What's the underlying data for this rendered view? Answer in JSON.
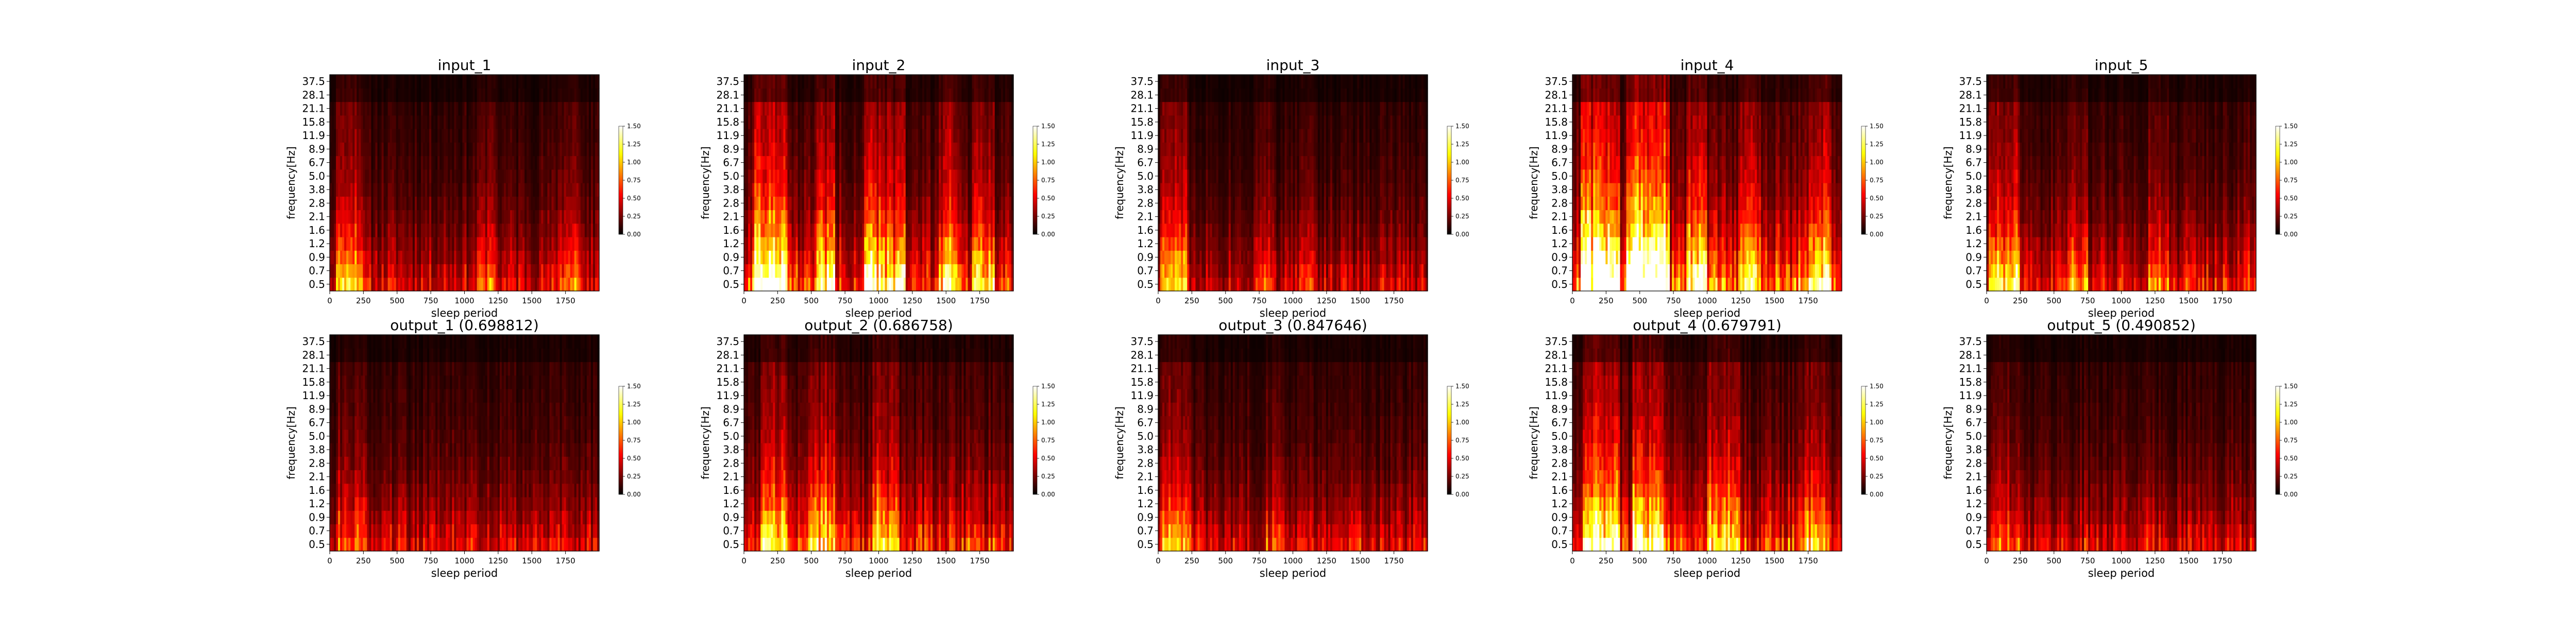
{
  "figure": {
    "background": "#ffffff",
    "colormap": "hot"
  },
  "chart_data": [
    {
      "type": "heatmap",
      "title": "input_1",
      "xlabel": "sleep period",
      "ylabel": "frequency[Hz]",
      "x_ticks": [
        "0",
        "250",
        "500",
        "750",
        "1000",
        "1250",
        "1500",
        "1750"
      ],
      "y_ticks": [
        "0.5",
        "0.7",
        "0.9",
        "1.2",
        "1.6",
        "2.1",
        "2.8",
        "3.8",
        "5.0",
        "6.7",
        "8.9",
        "11.9",
        "15.8",
        "21.1",
        "28.1",
        "37.5"
      ],
      "xlim": [
        0,
        2000
      ],
      "clim": [
        0,
        1.5
      ],
      "colorbar_ticks": [
        "0.00",
        "0.25",
        "0.50",
        "0.75",
        "1.00",
        "1.25",
        "1.50"
      ],
      "profile": {
        "seed": 11,
        "level": 0.3,
        "hot_regions": [
          [
            0.02,
            0.12,
            1.2
          ],
          [
            0.55,
            0.62,
            0.5
          ],
          [
            0.85,
            0.93,
            0.6
          ]
        ]
      }
    },
    {
      "type": "heatmap",
      "title": "input_2",
      "xlabel": "sleep period",
      "ylabel": "frequency[Hz]",
      "x_ticks": [
        "0",
        "250",
        "500",
        "750",
        "1000",
        "1250",
        "1500",
        "1750"
      ],
      "y_ticks": [
        "0.5",
        "0.7",
        "0.9",
        "1.2",
        "1.6",
        "2.1",
        "2.8",
        "3.8",
        "5.0",
        "6.7",
        "8.9",
        "11.9",
        "15.8",
        "21.1",
        "28.1",
        "37.5"
      ],
      "xlim": [
        0,
        2000
      ],
      "clim": [
        0,
        1.5
      ],
      "colorbar_ticks": [
        "0.00",
        "0.25",
        "0.50",
        "0.75",
        "1.00",
        "1.25",
        "1.50"
      ],
      "profile": {
        "seed": 22,
        "level": 0.4,
        "hot_regions": [
          [
            0.03,
            0.16,
            1.4
          ],
          [
            0.26,
            0.34,
            1.0
          ],
          [
            0.45,
            0.6,
            1.1
          ],
          [
            0.72,
            0.8,
            0.9
          ],
          [
            0.85,
            0.93,
            0.9
          ]
        ]
      }
    },
    {
      "type": "heatmap",
      "title": "input_3",
      "xlabel": "sleep period",
      "ylabel": "frequency[Hz]",
      "x_ticks": [
        "0",
        "250",
        "500",
        "750",
        "1000",
        "1250",
        "1500",
        "1750"
      ],
      "y_ticks": [
        "0.5",
        "0.7",
        "0.9",
        "1.2",
        "1.6",
        "2.1",
        "2.8",
        "3.8",
        "5.0",
        "6.7",
        "8.9",
        "11.9",
        "15.8",
        "21.1",
        "28.1",
        "37.5"
      ],
      "xlim": [
        0,
        2000
      ],
      "clim": [
        0,
        1.5
      ],
      "colorbar_ticks": [
        "0.00",
        "0.25",
        "0.50",
        "0.75",
        "1.00",
        "1.25",
        "1.50"
      ],
      "profile": {
        "seed": 33,
        "level": 0.28,
        "hot_regions": [
          [
            0.01,
            0.11,
            1.3
          ],
          [
            0.36,
            0.44,
            0.6
          ],
          [
            0.52,
            0.58,
            0.4
          ]
        ]
      }
    },
    {
      "type": "heatmap",
      "title": "input_4",
      "xlabel": "sleep period",
      "ylabel": "frequency[Hz]",
      "x_ticks": [
        "0",
        "250",
        "500",
        "750",
        "1000",
        "1250",
        "1500",
        "1750"
      ],
      "y_ticks": [
        "0.5",
        "0.7",
        "0.9",
        "1.2",
        "1.6",
        "2.1",
        "2.8",
        "3.8",
        "5.0",
        "6.7",
        "8.9",
        "11.9",
        "15.8",
        "21.1",
        "28.1",
        "37.5"
      ],
      "xlim": [
        0,
        2000
      ],
      "clim": [
        0,
        1.5
      ],
      "colorbar_ticks": [
        "0.00",
        "0.25",
        "0.50",
        "0.75",
        "1.00",
        "1.25",
        "1.50"
      ],
      "profile": {
        "seed": 44,
        "level": 0.48,
        "hot_regions": [
          [
            0.03,
            0.18,
            1.6
          ],
          [
            0.2,
            0.36,
            1.7
          ],
          [
            0.42,
            0.5,
            0.8
          ],
          [
            0.62,
            0.7,
            0.7
          ],
          [
            0.88,
            0.96,
            0.9
          ]
        ]
      }
    },
    {
      "type": "heatmap",
      "title": "input_5",
      "xlabel": "sleep period",
      "ylabel": "frequency[Hz]",
      "x_ticks": [
        "0",
        "250",
        "500",
        "750",
        "1000",
        "1250",
        "1500",
        "1750"
      ],
      "y_ticks": [
        "0.5",
        "0.7",
        "0.9",
        "1.2",
        "1.6",
        "2.1",
        "2.8",
        "3.8",
        "5.0",
        "6.7",
        "8.9",
        "11.9",
        "15.8",
        "21.1",
        "28.1",
        "37.5"
      ],
      "xlim": [
        0,
        2000
      ],
      "clim": [
        0,
        1.5
      ],
      "colorbar_ticks": [
        "0.00",
        "0.25",
        "0.50",
        "0.75",
        "1.00",
        "1.25",
        "1.50"
      ],
      "profile": {
        "seed": 55,
        "level": 0.34,
        "hot_regions": [
          [
            0.01,
            0.12,
            1.2
          ],
          [
            0.3,
            0.38,
            0.5
          ],
          [
            0.6,
            0.68,
            0.5
          ]
        ]
      }
    },
    {
      "type": "heatmap",
      "title": "output_1 (0.698812)",
      "xlabel": "sleep period",
      "ylabel": "frequency[Hz]",
      "x_ticks": [
        "0",
        "250",
        "500",
        "750",
        "1000",
        "1250",
        "1500",
        "1750"
      ],
      "y_ticks": [
        "0.5",
        "0.7",
        "0.9",
        "1.2",
        "1.6",
        "2.1",
        "2.8",
        "3.8",
        "5.0",
        "6.7",
        "8.9",
        "11.9",
        "15.8",
        "21.1",
        "28.1",
        "37.5"
      ],
      "xlim": [
        0,
        2000
      ],
      "clim": [
        0,
        1.5
      ],
      "colorbar_ticks": [
        "0.00",
        "0.25",
        "0.50",
        "0.75",
        "1.00",
        "1.25",
        "1.50"
      ],
      "profile": {
        "seed": 66,
        "level": 0.3,
        "hot_regions": [
          [
            0.02,
            0.14,
            0.5
          ]
        ]
      }
    },
    {
      "type": "heatmap",
      "title": "output_2 (0.686758)",
      "xlabel": "sleep period",
      "ylabel": "frequency[Hz]",
      "x_ticks": [
        "0",
        "250",
        "500",
        "750",
        "1000",
        "1250",
        "1500",
        "1750"
      ],
      "y_ticks": [
        "0.5",
        "0.7",
        "0.9",
        "1.2",
        "1.6",
        "2.1",
        "2.8",
        "3.8",
        "5.0",
        "6.7",
        "8.9",
        "11.9",
        "15.8",
        "21.1",
        "28.1",
        "37.5"
      ],
      "xlim": [
        0,
        2000
      ],
      "clim": [
        0,
        1.5
      ],
      "colorbar_ticks": [
        "0.00",
        "0.25",
        "0.50",
        "0.75",
        "1.00",
        "1.25",
        "1.50"
      ],
      "profile": {
        "seed": 77,
        "level": 0.38,
        "hot_regions": [
          [
            0.06,
            0.16,
            0.9
          ],
          [
            0.24,
            0.34,
            0.8
          ],
          [
            0.48,
            0.58,
            0.7
          ]
        ]
      }
    },
    {
      "type": "heatmap",
      "title": "output_3 (0.847646)",
      "xlabel": "sleep period",
      "ylabel": "frequency[Hz]",
      "x_ticks": [
        "0",
        "250",
        "500",
        "750",
        "1000",
        "1250",
        "1500",
        "1750"
      ],
      "y_ticks": [
        "0.5",
        "0.7",
        "0.9",
        "1.2",
        "1.6",
        "2.1",
        "2.8",
        "3.8",
        "5.0",
        "6.7",
        "8.9",
        "11.9",
        "15.8",
        "21.1",
        "28.1",
        "37.5"
      ],
      "xlim": [
        0,
        2000
      ],
      "clim": [
        0,
        1.5
      ],
      "colorbar_ticks": [
        "0.00",
        "0.25",
        "0.50",
        "0.75",
        "1.00",
        "1.25",
        "1.50"
      ],
      "profile": {
        "seed": 88,
        "level": 0.3,
        "hot_regions": [
          [
            0.01,
            0.12,
            1.1
          ],
          [
            0.4,
            0.46,
            0.3
          ]
        ]
      }
    },
    {
      "type": "heatmap",
      "title": "output_4 (0.679791)",
      "xlabel": "sleep period",
      "ylabel": "frequency[Hz]",
      "x_ticks": [
        "0",
        "250",
        "500",
        "750",
        "1000",
        "1250",
        "1500",
        "1750"
      ],
      "y_ticks": [
        "0.5",
        "0.7",
        "0.9",
        "1.2",
        "1.6",
        "2.1",
        "2.8",
        "3.8",
        "5.0",
        "6.7",
        "8.9",
        "11.9",
        "15.8",
        "21.1",
        "28.1",
        "37.5"
      ],
      "xlim": [
        0,
        2000
      ],
      "clim": [
        0,
        1.5
      ],
      "colorbar_ticks": [
        "0.00",
        "0.25",
        "0.50",
        "0.75",
        "1.00",
        "1.25",
        "1.50"
      ],
      "profile": {
        "seed": 99,
        "level": 0.4,
        "hot_regions": [
          [
            0.04,
            0.18,
            1.3
          ],
          [
            0.22,
            0.34,
            1.2
          ],
          [
            0.5,
            0.62,
            0.8
          ],
          [
            0.86,
            0.95,
            0.6
          ]
        ]
      }
    },
    {
      "type": "heatmap",
      "title": "output_5 (0.490852)",
      "xlabel": "sleep period",
      "ylabel": "frequency[Hz]",
      "x_ticks": [
        "0",
        "250",
        "500",
        "750",
        "1000",
        "1250",
        "1500",
        "1750"
      ],
      "y_ticks": [
        "0.5",
        "0.7",
        "0.9",
        "1.2",
        "1.6",
        "2.1",
        "2.8",
        "3.8",
        "5.0",
        "6.7",
        "8.9",
        "11.9",
        "15.8",
        "21.1",
        "28.1",
        "37.5"
      ],
      "xlim": [
        0,
        2000
      ],
      "clim": [
        0,
        1.5
      ],
      "colorbar_ticks": [
        "0.00",
        "0.25",
        "0.50",
        "0.75",
        "1.00",
        "1.25",
        "1.50"
      ],
      "profile": {
        "seed": 111,
        "level": 0.3,
        "hot_regions": [
          [
            0.02,
            0.12,
            0.5
          ]
        ]
      }
    }
  ]
}
